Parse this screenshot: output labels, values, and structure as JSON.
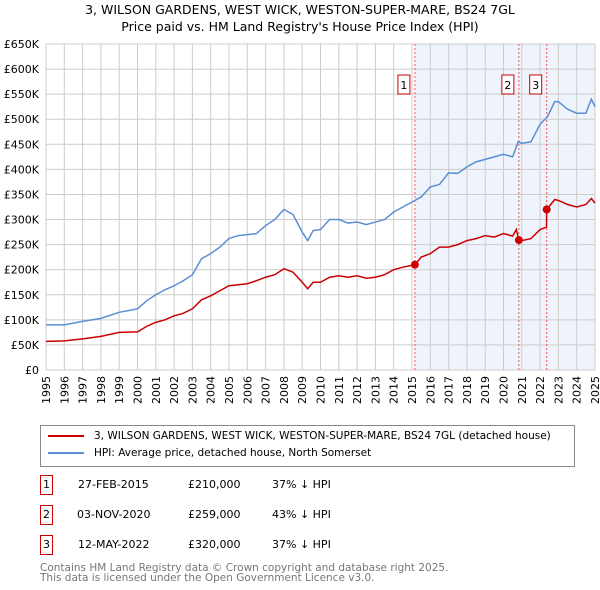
{
  "chart_data": {
    "type": "line",
    "title": "3, WILSON GARDENS, WEST WICK, WESTON-SUPER-MARE, BS24 7GL",
    "subtitle": "Price paid vs. HM Land Registry's House Price Index (HPI)",
    "xlim": [
      1995,
      2025
    ],
    "ylim": [
      0,
      650000
    ],
    "x_ticks": [
      "1995",
      "1996",
      "1997",
      "1998",
      "1999",
      "2000",
      "2001",
      "2002",
      "2003",
      "2004",
      "2005",
      "2006",
      "2007",
      "2008",
      "2009",
      "2010",
      "2011",
      "2012",
      "2013",
      "2014",
      "2015",
      "2016",
      "2017",
      "2018",
      "2019",
      "2020",
      "2021",
      "2022",
      "2023",
      "2024",
      "2025"
    ],
    "y_ticks": [
      {
        "v": 0,
        "l": "£0"
      },
      {
        "v": 50000,
        "l": "£50K"
      },
      {
        "v": 100000,
        "l": "£100K"
      },
      {
        "v": 150000,
        "l": "£150K"
      },
      {
        "v": 200000,
        "l": "£200K"
      },
      {
        "v": 250000,
        "l": "£250K"
      },
      {
        "v": 300000,
        "l": "£300K"
      },
      {
        "v": 350000,
        "l": "£350K"
      },
      {
        "v": 400000,
        "l": "£400K"
      },
      {
        "v": 450000,
        "l": "£450K"
      },
      {
        "v": 500000,
        "l": "£500K"
      },
      {
        "v": 550000,
        "l": "£550K"
      },
      {
        "v": 600000,
        "l": "£600K"
      },
      {
        "v": 650000,
        "l": "£650K"
      }
    ],
    "grid": true,
    "series": [
      {
        "name": "3, WILSON GARDENS, WEST WICK, WESTON-SUPER-MARE, BS24 7GL (detached house)",
        "color": "#cc0000",
        "points": [
          [
            1995,
            57
          ],
          [
            1996,
            58
          ],
          [
            1997,
            62
          ],
          [
            1998,
            67
          ],
          [
            1999,
            75
          ],
          [
            2000,
            76
          ],
          [
            2000.5,
            87
          ],
          [
            2001,
            95
          ],
          [
            2001.5,
            100
          ],
          [
            2002,
            108
          ],
          [
            2002.5,
            113
          ],
          [
            2003,
            122
          ],
          [
            2003.5,
            140
          ],
          [
            2004,
            148
          ],
          [
            2004.5,
            158
          ],
          [
            2005,
            168
          ],
          [
            2005.5,
            170
          ],
          [
            2006,
            172
          ],
          [
            2006.5,
            178
          ],
          [
            2007,
            185
          ],
          [
            2007.5,
            190
          ],
          [
            2008,
            202
          ],
          [
            2008.5,
            195
          ],
          [
            2009,
            175
          ],
          [
            2009.3,
            162
          ],
          [
            2009.6,
            175
          ],
          [
            2010,
            175
          ],
          [
            2010.5,
            185
          ],
          [
            2011,
            188
          ],
          [
            2011.5,
            185
          ],
          [
            2012,
            188
          ],
          [
            2012.5,
            183
          ],
          [
            2013,
            185
          ],
          [
            2013.5,
            190
          ],
          [
            2014,
            200
          ],
          [
            2014.5,
            205
          ],
          [
            2015.16,
            210
          ],
          [
            2015.5,
            225
          ],
          [
            2016,
            232
          ],
          [
            2016.5,
            245
          ],
          [
            2017,
            245
          ],
          [
            2017.5,
            250
          ],
          [
            2018,
            258
          ],
          [
            2018.5,
            262
          ],
          [
            2019,
            268
          ],
          [
            2019.5,
            265
          ],
          [
            2020,
            272
          ],
          [
            2020.5,
            267
          ],
          [
            2020.7,
            280
          ],
          [
            2020.84,
            259
          ],
          [
            2021,
            258
          ],
          [
            2021.5,
            262
          ],
          [
            2022,
            280
          ],
          [
            2022.35,
            285
          ],
          [
            2022.36,
            320
          ],
          [
            2022.8,
            340
          ],
          [
            2023,
            338
          ],
          [
            2023.5,
            330
          ],
          [
            2024,
            325
          ],
          [
            2024.5,
            330
          ],
          [
            2024.8,
            342
          ],
          [
            2025,
            333
          ]
        ]
      },
      {
        "name": "HPI: Average price, detached house, North Somerset",
        "color": "#5b8fd4",
        "points": [
          [
            1995,
            90
          ],
          [
            1996,
            90
          ],
          [
            1997,
            97
          ],
          [
            1998,
            103
          ],
          [
            1999,
            115
          ],
          [
            2000,
            122
          ],
          [
            2000.5,
            138
          ],
          [
            2001,
            150
          ],
          [
            2001.5,
            160
          ],
          [
            2002,
            168
          ],
          [
            2002.5,
            178
          ],
          [
            2003,
            190
          ],
          [
            2003.5,
            222
          ],
          [
            2004,
            232
          ],
          [
            2004.5,
            245
          ],
          [
            2005,
            262
          ],
          [
            2005.5,
            268
          ],
          [
            2006,
            270
          ],
          [
            2006.5,
            272
          ],
          [
            2007,
            288
          ],
          [
            2007.5,
            300
          ],
          [
            2008,
            320
          ],
          [
            2008.5,
            310
          ],
          [
            2009,
            275
          ],
          [
            2009.3,
            258
          ],
          [
            2009.6,
            278
          ],
          [
            2010,
            280
          ],
          [
            2010.5,
            300
          ],
          [
            2011,
            300
          ],
          [
            2011.5,
            293
          ],
          [
            2012,
            295
          ],
          [
            2012.5,
            290
          ],
          [
            2013,
            295
          ],
          [
            2013.5,
            300
          ],
          [
            2014,
            315
          ],
          [
            2014.5,
            325
          ],
          [
            2015,
            335
          ],
          [
            2015.5,
            345
          ],
          [
            2016,
            365
          ],
          [
            2016.5,
            370
          ],
          [
            2017,
            393
          ],
          [
            2017.5,
            392
          ],
          [
            2018,
            405
          ],
          [
            2018.5,
            415
          ],
          [
            2019,
            420
          ],
          [
            2019.5,
            425
          ],
          [
            2020,
            430
          ],
          [
            2020.5,
            425
          ],
          [
            2020.8,
            455
          ],
          [
            2021,
            452
          ],
          [
            2021.5,
            455
          ],
          [
            2022,
            490
          ],
          [
            2022.4,
            505
          ],
          [
            2022.8,
            535
          ],
          [
            2023,
            535
          ],
          [
            2023.5,
            520
          ],
          [
            2024,
            512
          ],
          [
            2024.5,
            512
          ],
          [
            2024.8,
            540
          ],
          [
            2025,
            525
          ]
        ]
      }
    ],
    "sales": [
      {
        "id": "1",
        "x": 2015.16,
        "y": 210,
        "date": "27-FEB-2015",
        "price": "£210,000",
        "hpi": "37% ↓ HPI"
      },
      {
        "id": "2",
        "x": 2020.84,
        "y": 259,
        "date": "03-NOV-2020",
        "price": "£259,000",
        "hpi": "43% ↓ HPI"
      },
      {
        "id": "3",
        "x": 2022.36,
        "y": 320,
        "date": "12-MAY-2022",
        "price": "£320,000",
        "hpi": "37% ↓ HPI"
      }
    ],
    "shaded_from": 2015.16
  },
  "footer": [
    "Contains HM Land Registry data © Crown copyright and database right 2025.",
    "This data is licensed under the Open Government Licence v3.0."
  ]
}
